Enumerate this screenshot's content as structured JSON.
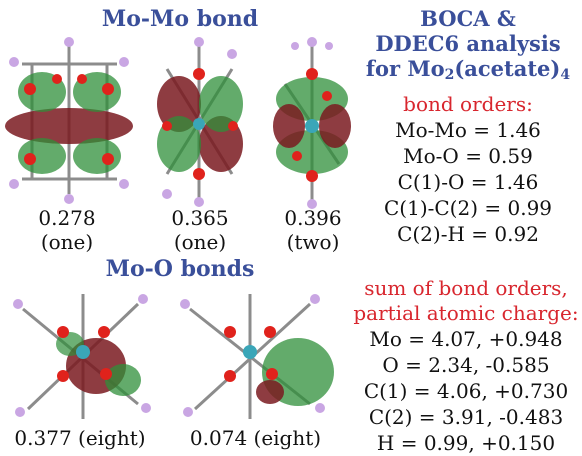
{
  "colors": {
    "heading_blue": "#3a4f9a",
    "label_red": "#d8262e",
    "text_black": "#111111",
    "orbital_green": "#2f8f3a",
    "orbital_maroon": "#7a1a20",
    "oxygen_red": "#e0221c",
    "carbon_gray": "#8c8c8c",
    "hydrogen_pink": "#c9a6e3",
    "molybdenum_teal": "#3aa6b8"
  },
  "moMo": {
    "title": "Mo-Mo bond",
    "orbitals": [
      {
        "value": "0.278",
        "count": "(one)"
      },
      {
        "value": "0.365",
        "count": "(one)"
      },
      {
        "value": "0.396",
        "count": "(two)"
      }
    ]
  },
  "moO": {
    "title": "Mo-O bonds",
    "orbitals": [
      {
        "caption": "0.377 (eight)"
      },
      {
        "caption": "0.074 (eight)"
      }
    ]
  },
  "analysis": {
    "title_line1": "BOCA &",
    "title_line2": "DDEC6 analysis",
    "title_line3_prefix": "for Mo",
    "title_line3_sub": "2",
    "title_line3_mid": "(acetate)",
    "title_line3_sub2": "4",
    "bond_orders_label": "bond orders:",
    "bond_orders": [
      "Mo-Mo = 1.46",
      "Mo-O = 0.59",
      "C(1)-O = 1.46",
      "C(1)-C(2) = 0.99",
      "C(2)-H = 0.92"
    ],
    "sum_label_line1": "sum of bond orders,",
    "sum_label_line2": "partial atomic charge:",
    "atoms": [
      "Mo = 4.07, +0.948",
      "O = 2.34, -0.585",
      "C(1) = 4.06, +0.730",
      "C(2) = 3.91, -0.483",
      "H = 0.99, +0.150"
    ]
  }
}
